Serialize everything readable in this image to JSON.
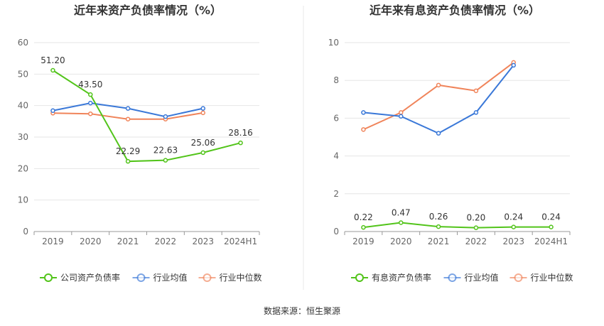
{
  "footer": {
    "source": "数据来源：恒生聚源"
  },
  "chart_data": [
    {
      "type": "line",
      "title": "近年来资产负债率情况（%）",
      "categories": [
        "2019",
        "2020",
        "2021",
        "2022",
        "2023",
        "2024H1"
      ],
      "ylim": [
        0,
        60
      ],
      "yticks": [
        0,
        10,
        20,
        30,
        40,
        50,
        60
      ],
      "grid": true,
      "legend_position": "bottom",
      "series": [
        {
          "name": "公司资产负债率",
          "color": "#52c41a",
          "labeled": true,
          "values": [
            51.2,
            43.5,
            22.29,
            22.63,
            25.06,
            28.16
          ],
          "labels": [
            "51.20",
            "43.50",
            "22.29",
            "22.63",
            "25.06",
            "28.16"
          ]
        },
        {
          "name": "行业均值",
          "color": "#3a78d8",
          "labeled": false,
          "values": [
            38.4,
            40.8,
            39.1,
            36.5,
            39.1,
            null
          ]
        },
        {
          "name": "行业中位数",
          "color": "#f0845a",
          "labeled": false,
          "values": [
            37.6,
            37.4,
            35.7,
            35.7,
            37.7,
            null
          ]
        }
      ]
    },
    {
      "type": "line",
      "title": "近年来有息资产负债率情况（%）",
      "categories": [
        "2019",
        "2020",
        "2021",
        "2022",
        "2023",
        "2024H1"
      ],
      "ylim": [
        0,
        10
      ],
      "yticks": [
        0,
        2,
        4,
        6,
        8,
        10
      ],
      "grid": true,
      "legend_position": "bottom",
      "series": [
        {
          "name": "有息资产负债率",
          "color": "#52c41a",
          "labeled": true,
          "values": [
            0.22,
            0.47,
            0.26,
            0.2,
            0.24,
            0.24
          ],
          "labels": [
            "0.22",
            "0.47",
            "0.26",
            "0.20",
            "0.24",
            "0.24"
          ]
        },
        {
          "name": "行业均值",
          "color": "#3a78d8",
          "labeled": false,
          "values": [
            6.3,
            6.1,
            5.2,
            6.3,
            8.8,
            null
          ]
        },
        {
          "name": "行业中位数",
          "color": "#f0845a",
          "labeled": false,
          "values": [
            5.4,
            6.3,
            7.75,
            7.45,
            8.95,
            null
          ]
        }
      ]
    }
  ]
}
